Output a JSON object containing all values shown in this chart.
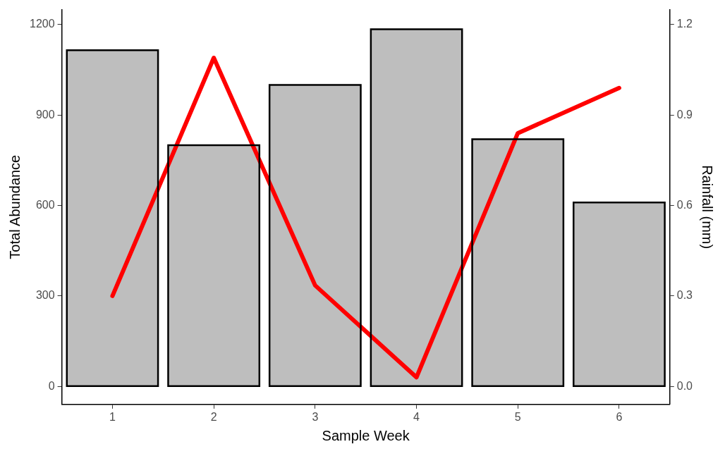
{
  "chart_data": {
    "type": "bar",
    "xlabel": "Sample Week",
    "ylabel": "Total Abundance",
    "y2label": "Rainfall (mm)",
    "categories": [
      "1",
      "2",
      "3",
      "4",
      "5",
      "6"
    ],
    "series": [
      {
        "color": "#bebebe",
        "values": [
          1115,
          800,
          1000,
          1185,
          820,
          610
        ]
      },
      {
        "type": "line",
        "axis": "y2",
        "color": "#ff0000",
        "marker": "none",
        "line_style": "solid",
        "values": [
          0.3,
          1.09,
          0.335,
          0.03,
          0.84,
          0.99
        ]
      }
    ],
    "ylim": [
      -60,
      1250
    ],
    "yticks": [
      0,
      300,
      600,
      900,
      1200
    ],
    "y2lim": [
      -0.06,
      1.25
    ],
    "y2ticks": [
      {
        "value": 0,
        "label": "0.0"
      },
      0.3,
      0.6,
      0.9,
      1.2
    ],
    "grid": false,
    "legend": false
  }
}
